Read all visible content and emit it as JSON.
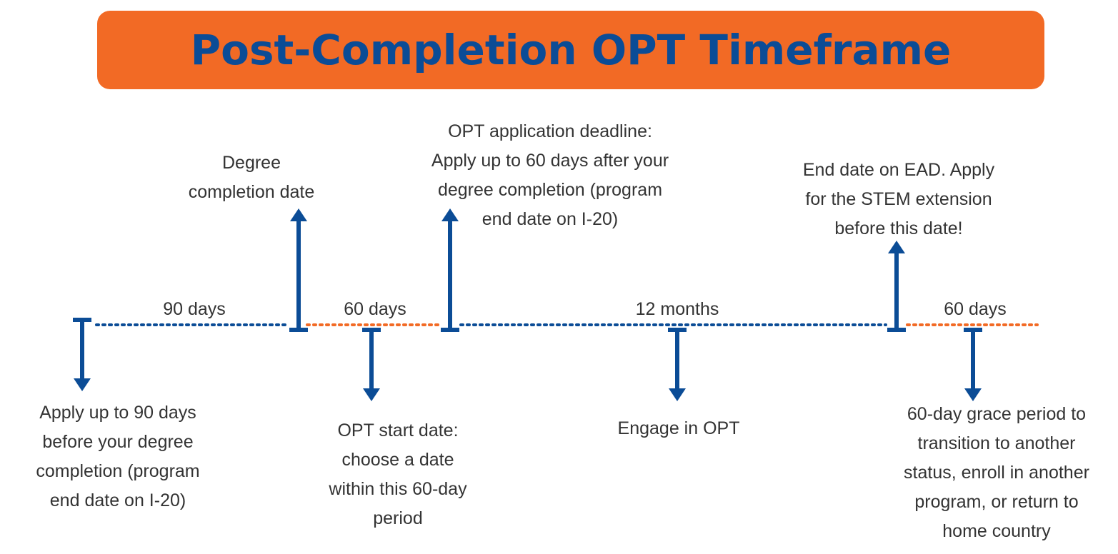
{
  "title": "Post-Completion OPT Timeframe",
  "colors": {
    "accent_blue": "#0b4c96",
    "accent_orange": "#f26a25",
    "text": "#333333"
  },
  "periods": [
    {
      "label": "90 days",
      "color": "blue"
    },
    {
      "label": "60 days",
      "color": "orange"
    },
    {
      "label": "12 months",
      "color": "blue"
    },
    {
      "label": "60 days",
      "color": "orange"
    }
  ],
  "markers": [
    {
      "direction": "down",
      "lines": [
        "Apply up to 90 days",
        "before your degree",
        "completion (program",
        "end date on I-20)"
      ]
    },
    {
      "direction": "up",
      "lines": [
        "Degree",
        "completion date"
      ]
    },
    {
      "direction": "down",
      "lines": [
        "OPT start date:",
        "choose a date",
        "within this 60-day",
        "period"
      ]
    },
    {
      "direction": "up",
      "lines": [
        "OPT application deadline:",
        "Apply up to 60 days after your",
        "degree completion (program",
        "end date on I-20)"
      ]
    },
    {
      "direction": "down",
      "lines": [
        "Engage in OPT"
      ]
    },
    {
      "direction": "up",
      "lines": [
        "End date on EAD. Apply",
        "for the STEM extension",
        "before this date!"
      ]
    },
    {
      "direction": "down",
      "lines": [
        "60-day grace period to",
        "transition to another",
        "status, enroll in another",
        "program, or return to",
        "home country"
      ]
    }
  ]
}
